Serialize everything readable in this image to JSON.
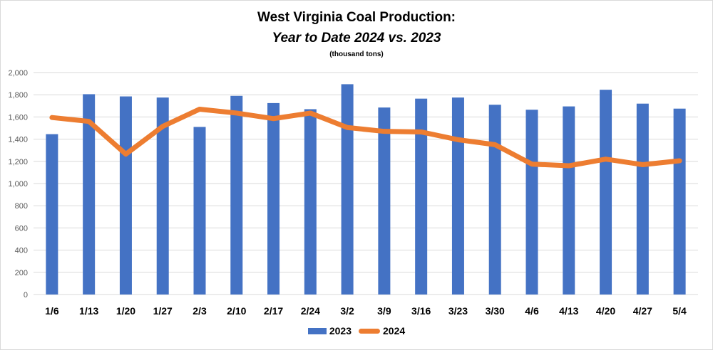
{
  "chart_data": {
    "type": "bar",
    "title": "West Virginia Coal Production:",
    "subtitle_italic": "Year to Date 2024 vs. 2023",
    "units_note": "(thousand tons)",
    "categories": [
      "1/6",
      "1/13",
      "1/20",
      "1/27",
      "2/3",
      "2/10",
      "2/17",
      "2/24",
      "3/2",
      "3/9",
      "3/16",
      "3/23",
      "3/30",
      "4/6",
      "4/13",
      "4/20",
      "4/27",
      "5/4"
    ],
    "series": [
      {
        "name": "2023",
        "type": "bar",
        "color": "#4472c4",
        "values": [
          1445,
          1805,
          1785,
          1775,
          1510,
          1790,
          1725,
          1670,
          1895,
          1685,
          1765,
          1775,
          1710,
          1665,
          1695,
          1845,
          1720,
          1675
        ]
      },
      {
        "name": "2024",
        "type": "line",
        "color": "#ed7d31",
        "values": [
          1595,
          1560,
          1265,
          1515,
          1670,
          1635,
          1585,
          1635,
          1505,
          1470,
          1465,
          1395,
          1350,
          1175,
          1160,
          1220,
          1170,
          1205
        ]
      }
    ],
    "ylim": [
      0,
      2000
    ],
    "y_ticks": [
      "2,000",
      "1,800",
      "1,600",
      "1,400",
      "1,200",
      "1,000",
      "800",
      "600",
      "400",
      "200",
      "0"
    ],
    "y_tick_values": [
      2000,
      1800,
      1600,
      1400,
      1200,
      1000,
      800,
      600,
      400,
      200,
      0
    ],
    "grid": true,
    "legend_position": "bottom"
  }
}
